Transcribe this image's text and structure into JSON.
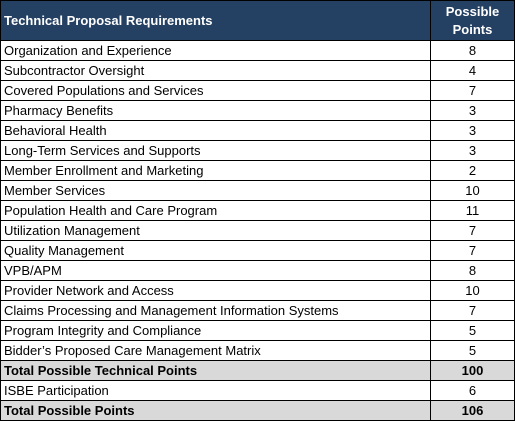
{
  "table": {
    "header": [
      "Technical Proposal Requirements",
      "Possible Points"
    ],
    "rows": [
      [
        "Organization and Experience",
        8
      ],
      [
        "Subcontractor Oversight",
        4
      ],
      [
        "Covered Populations and Services",
        7
      ],
      [
        "Pharmacy Benefits",
        3
      ],
      [
        "Behavioral Health",
        3
      ],
      [
        "Long-Term Services and Supports",
        3
      ],
      [
        "Member Enrollment and Marketing",
        2
      ],
      [
        "Member Services",
        10
      ],
      [
        "Population Health and Care Program",
        11
      ],
      [
        "Utilization Management",
        7
      ],
      [
        "Quality Management",
        7
      ],
      [
        "VPB/APM",
        8
      ],
      [
        "Provider Network and Access",
        10
      ],
      [
        "Claims Processing and Management Information Systems",
        7
      ],
      [
        "Program Integrity and Compliance",
        5
      ],
      [
        "Bidder’s Proposed Care Management Matrix",
        5
      ]
    ],
    "technical_total": [
      "Total Possible Technical Points",
      100
    ],
    "additional": [
      [
        "ISBE Participation",
        6
      ]
    ],
    "grand_total": [
      "Total Possible Points",
      106
    ]
  }
}
